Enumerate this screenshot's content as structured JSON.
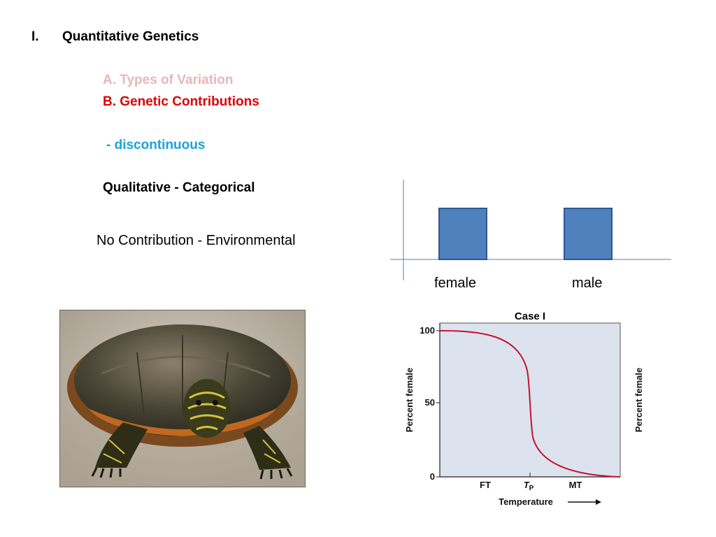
{
  "slide": {
    "heading_number": "I.",
    "heading_text": "Quantitative Genetics",
    "sub_a": "A.  Types of Variation",
    "sub_b": "B. Genetic Contributions",
    "discontinuous": "- discontinuous",
    "qualitative": "Qualitative - Categorical",
    "no_contribution": "No Contribution - Environmental",
    "colors": {
      "faded": "#e6b8b8",
      "red": "#e00000",
      "blue": "#1aa3d9",
      "bar": "#4f81bd"
    }
  },
  "category_chart": {
    "labels": [
      "female",
      "male"
    ]
  },
  "photo": {
    "subject": "turtle-photo"
  },
  "graph": {
    "title": "Case I",
    "y_ticks": [
      "100",
      "50",
      "0"
    ],
    "y_label_left": "Percent female",
    "y_label_right": "Percent female",
    "x_ticks": [
      "FT",
      "T",
      "MT"
    ],
    "x_tick_subscript": "P",
    "x_label": "Temperature"
  }
}
